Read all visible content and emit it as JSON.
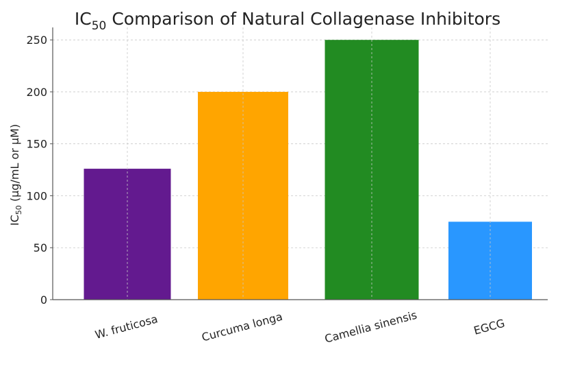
{
  "chart_data": {
    "type": "bar",
    "title": "IC",
    "title_sub": "50",
    "title_rest": " Comparison of Natural Collagenase Inhibitors",
    "xlabel": "",
    "ylabel": "IC",
    "ylabel_sub": "50",
    "ylabel_rest": " (µg/mL or µM)",
    "categories": [
      "W. fruticosa",
      "Curcuma longa",
      "Camellia sinensis",
      "EGCG"
    ],
    "values": [
      126,
      200,
      250,
      75
    ],
    "colors": [
      "#631a8f",
      "#ffa500",
      "#228b22",
      "#2997ff"
    ],
    "ylim": [
      0,
      262
    ],
    "yticks": [
      0,
      50,
      100,
      150,
      200,
      250
    ],
    "grid": true
  }
}
